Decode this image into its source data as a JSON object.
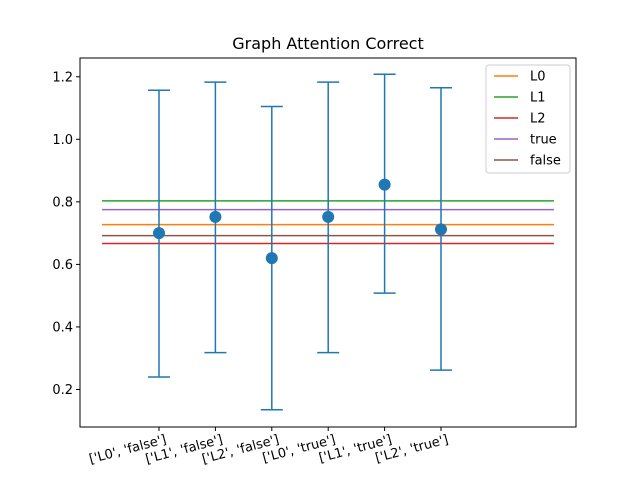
{
  "chart_data": {
    "type": "scatter",
    "title": "Graph Attention Correct",
    "xlabel": "",
    "ylabel": "",
    "ylim": [
      0.08,
      1.26
    ],
    "yticks": [
      "0.2",
      "0.4",
      "0.6",
      "0.8",
      "1.0",
      "1.2"
    ],
    "categories": [
      "['L0', 'false']",
      "['L1', 'false']",
      "['L2', 'false']",
      "['L0', 'true']",
      "['L1', 'true']",
      "['L2', 'true']"
    ],
    "points": {
      "values": [
        0.7,
        0.752,
        0.62,
        0.752,
        0.855,
        0.712
      ],
      "err_low": [
        0.24,
        0.318,
        0.135,
        0.318,
        0.508,
        0.262
      ],
      "err_high": [
        1.157,
        1.183,
        1.105,
        1.183,
        1.208,
        1.165
      ],
      "color": "#1f77b4"
    },
    "hlines": [
      {
        "name": "L0",
        "value": 0.727,
        "color": "#ff7f0e"
      },
      {
        "name": "L1",
        "value": 0.803,
        "color": "#2ca02c"
      },
      {
        "name": "L2",
        "value": 0.667,
        "color": "#d62728"
      },
      {
        "name": "true",
        "value": 0.775,
        "color": "#9467bd"
      },
      {
        "name": "false",
        "value": 0.692,
        "color": "#8c564b"
      }
    ],
    "legend_position": "top-right",
    "grid": false
  }
}
